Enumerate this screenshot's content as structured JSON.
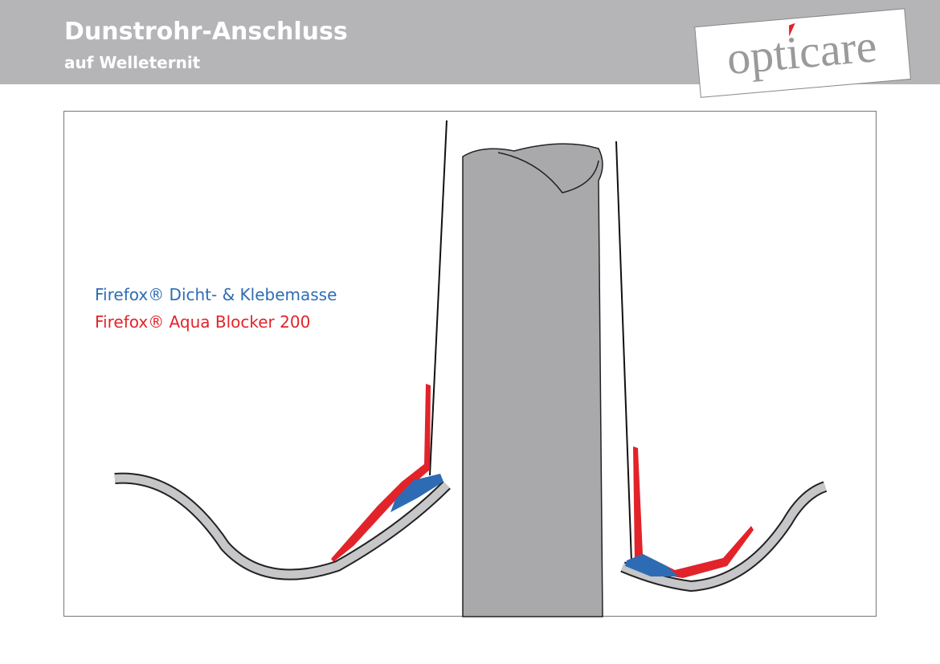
{
  "header": {
    "title": "Dunstrohr-Anschluss",
    "subtitle": "auf Welleternit"
  },
  "logo": {
    "text": "opticare"
  },
  "legend": {
    "items": [
      {
        "label": "Firefox® Dicht- & Klebemasse",
        "color": "#2d6cb4"
      },
      {
        "label": "Firefox® Aqua Blocker 200",
        "color": "#e2232a"
      }
    ]
  }
}
